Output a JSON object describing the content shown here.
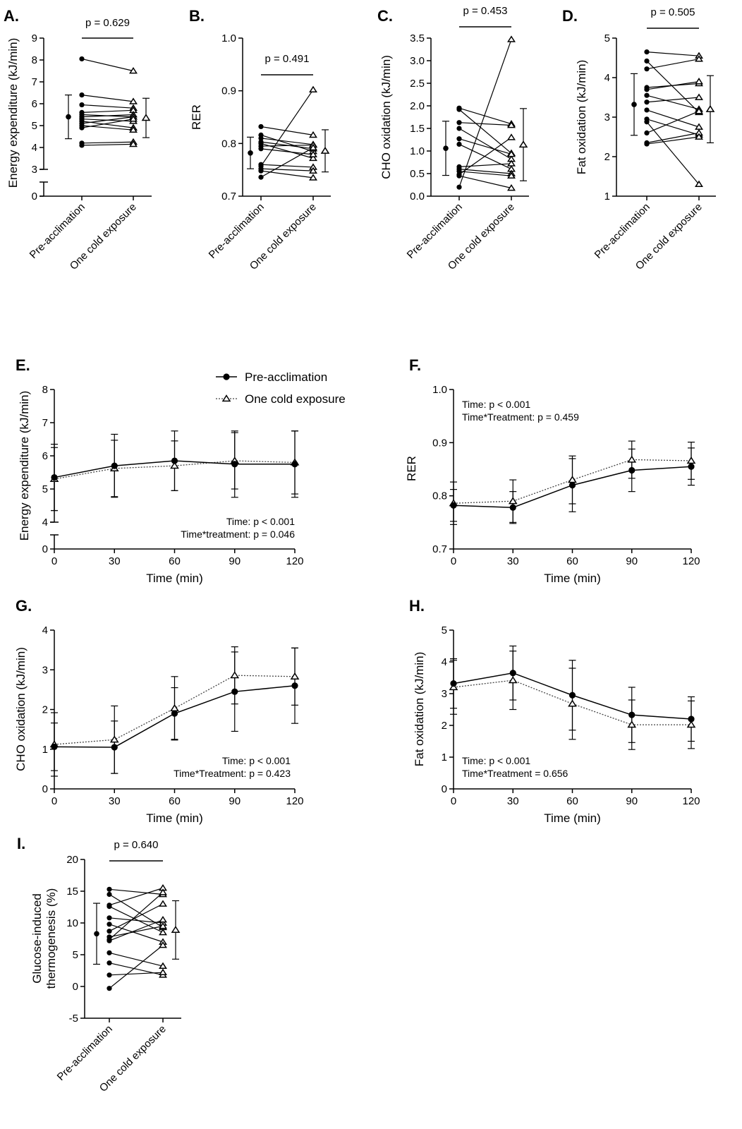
{
  "figure": {
    "legend": [
      {
        "name": "Pre-acclimation",
        "marker": "circle",
        "line": "solid"
      },
      {
        "name": "One cold exposure",
        "marker": "triangle",
        "line": "dotted"
      }
    ]
  },
  "chart_data": [
    {
      "id": "A",
      "panel_label": "A.",
      "type": "scatter",
      "ylabel": "Energy expenditure (kJ/min)",
      "yticks": [
        "0",
        "3",
        "4",
        "5",
        "6",
        "7",
        "8",
        "9"
      ],
      "ylim": [
        3,
        9
      ],
      "axis_break": true,
      "categories": [
        "Pre-acclimation",
        "One cold exposure"
      ],
      "p_value": "p = 0.629",
      "paired": [
        [
          8.05,
          7.5
        ],
        [
          6.4,
          6.1
        ],
        [
          5.95,
          5.8
        ],
        [
          5.6,
          5.7
        ],
        [
          5.5,
          5.4
        ],
        [
          5.4,
          5.5
        ],
        [
          5.3,
          5.2
        ],
        [
          5.2,
          4.9
        ],
        [
          5.1,
          5.4
        ],
        [
          5.0,
          4.8
        ],
        [
          4.9,
          5.3
        ],
        [
          4.2,
          4.25
        ],
        [
          4.1,
          4.15
        ]
      ],
      "summary": [
        {
          "mean": 5.4,
          "sd": 1.0
        },
        {
          "mean": 5.35,
          "sd": 0.9
        }
      ]
    },
    {
      "id": "B",
      "panel_label": "B.",
      "type": "scatter",
      "ylabel": "RER",
      "yticks": [
        "0.7",
        "0.8",
        "0.9",
        "1.0"
      ],
      "ylim": [
        0.7,
        1.0
      ],
      "axis_break": false,
      "categories": [
        "Pre-acclimation",
        "One cold exposure"
      ],
      "p_value": "p = 0.491",
      "paired": [
        [
          0.832,
          0.816
        ],
        [
          0.816,
          0.785
        ],
        [
          0.81,
          0.798
        ],
        [
          0.803,
          0.79
        ],
        [
          0.8,
          0.772
        ],
        [
          0.795,
          0.797
        ],
        [
          0.79,
          0.779
        ],
        [
          0.76,
          0.755
        ],
        [
          0.757,
          0.902
        ],
        [
          0.752,
          0.748
        ],
        [
          0.748,
          0.735
        ],
        [
          0.736,
          0.792
        ]
      ],
      "summary": [
        {
          "mean": 0.782,
          "sd": 0.03
        },
        {
          "mean": 0.786,
          "sd": 0.04
        }
      ]
    },
    {
      "id": "C",
      "panel_label": "C.",
      "type": "scatter",
      "ylabel": "CHO oxidation (kJ/min)",
      "yticks": [
        "0.0",
        "0.5",
        "1.0",
        "1.5",
        "2.0",
        "2.5",
        "3.0",
        "3.5"
      ],
      "ylim": [
        0,
        3.5
      ],
      "axis_break": false,
      "categories": [
        "Pre-acclimation",
        "One cold exposure"
      ],
      "p_value": "p = 0.453",
      "paired": [
        [
          1.95,
          1.6
        ],
        [
          1.92,
          0.95
        ],
        [
          1.63,
          1.57
        ],
        [
          1.5,
          0.82
        ],
        [
          1.27,
          0.93
        ],
        [
          1.15,
          0.6
        ],
        [
          0.65,
          0.72
        ],
        [
          0.6,
          0.5
        ],
        [
          0.55,
          0.45
        ],
        [
          0.48,
          1.3
        ],
        [
          0.45,
          0.18
        ],
        [
          0.2,
          3.47
        ]
      ],
      "summary": [
        {
          "mean": 1.06,
          "sd": 0.6
        },
        {
          "mean": 1.14,
          "sd": 0.8
        }
      ]
    },
    {
      "id": "D",
      "panel_label": "D.",
      "type": "scatter",
      "ylabel": "Fat oxidation (kJ/min)",
      "yticks": [
        "1",
        "2",
        "3",
        "4",
        "5"
      ],
      "ylim": [
        1,
        5
      ],
      "axis_break": false,
      "categories": [
        "Pre-acclimation",
        "One cold exposure"
      ],
      "p_value": "p = 0.505",
      "paired": [
        [
          4.65,
          4.55
        ],
        [
          4.42,
          3.12
        ],
        [
          4.22,
          4.47
        ],
        [
          3.75,
          3.85
        ],
        [
          3.7,
          3.9
        ],
        [
          3.55,
          3.2
        ],
        [
          3.38,
          3.5
        ],
        [
          3.18,
          2.75
        ],
        [
          2.95,
          2.55
        ],
        [
          2.88,
          1.3
        ],
        [
          2.6,
          3.15
        ],
        [
          2.35,
          2.6
        ],
        [
          2.32,
          2.5
        ]
      ],
      "summary": [
        {
          "mean": 3.32,
          "sd": 0.78
        },
        {
          "mean": 3.2,
          "sd": 0.85
        }
      ]
    },
    {
      "id": "E",
      "panel_label": "E.",
      "type": "line",
      "xlabel": "Time (min)",
      "ylabel": "Energy expenditure (kJ/min)",
      "x": [
        0,
        30,
        60,
        90,
        120
      ],
      "yticks": [
        "0",
        "4",
        "5",
        "6",
        "7",
        "8"
      ],
      "ylim": [
        4,
        8
      ],
      "axis_break": true,
      "series": [
        {
          "name": "Pre-acclimation",
          "values": [
            5.35,
            5.7,
            5.85,
            5.75,
            5.75
          ],
          "sd": [
            1.0,
            0.95,
            0.9,
            1.0,
            1.0
          ]
        },
        {
          "name": "One cold exposure",
          "values": [
            5.3,
            5.62,
            5.7,
            5.85,
            5.8
          ],
          "sd": [
            0.95,
            0.85,
            0.75,
            0.85,
            0.95
          ]
        }
      ],
      "annotations": [
        "Time: p < 0.001",
        "Time*treatment: p = 0.046"
      ],
      "annotation_position": "bottom-right"
    },
    {
      "id": "F",
      "panel_label": "F.",
      "type": "line",
      "xlabel": "Time (min)",
      "ylabel": "RER",
      "x": [
        0,
        30,
        60,
        90,
        120
      ],
      "yticks": [
        "0.7",
        "0.8",
        "0.9",
        "1.0"
      ],
      "ylim": [
        0.7,
        1.0
      ],
      "axis_break": false,
      "series": [
        {
          "name": "Pre-acclimation",
          "values": [
            0.782,
            0.778,
            0.82,
            0.848,
            0.855
          ],
          "sd": [
            0.03,
            0.03,
            0.05,
            0.04,
            0.035
          ]
        },
        {
          "name": "One cold exposure",
          "values": [
            0.786,
            0.79,
            0.83,
            0.868,
            0.866
          ],
          "sd": [
            0.04,
            0.04,
            0.045,
            0.035,
            0.035
          ]
        }
      ],
      "annotations": [
        "Time: p < 0.001",
        "Time*Treatment: p = 0.459"
      ],
      "annotation_position": "top-left"
    },
    {
      "id": "G",
      "panel_label": "G.",
      "type": "line",
      "xlabel": "Time (min)",
      "ylabel": "CHO oxidation (kJ/min)",
      "x": [
        0,
        30,
        60,
        90,
        120
      ],
      "yticks": [
        "0",
        "1",
        "2",
        "3",
        "4"
      ],
      "ylim": [
        0,
        4
      ],
      "axis_break": false,
      "series": [
        {
          "name": "Pre-acclimation",
          "values": [
            1.06,
            1.05,
            1.9,
            2.45,
            2.6
          ],
          "sd": [
            0.6,
            0.66,
            0.65,
            1.0,
            0.95
          ]
        },
        {
          "name": "One cold exposure",
          "values": [
            1.12,
            1.24,
            2.03,
            2.86,
            2.83
          ],
          "sd": [
            0.8,
            0.85,
            0.8,
            0.72,
            0.72
          ]
        }
      ],
      "annotations": [
        "Time: p < 0.001",
        "Time*Treatment: p = 0.423"
      ],
      "annotation_position": "bottom-right"
    },
    {
      "id": "H",
      "panel_label": "H.",
      "type": "line",
      "xlabel": "Time (min)",
      "ylabel": "Fat oxidation (kJ/min)",
      "x": [
        0,
        30,
        60,
        90,
        120
      ],
      "yticks": [
        "0",
        "1",
        "2",
        "3",
        "4",
        "5"
      ],
      "ylim": [
        0,
        5
      ],
      "axis_break": false,
      "series": [
        {
          "name": "Pre-acclimation",
          "values": [
            3.32,
            3.65,
            2.95,
            2.33,
            2.2
          ],
          "sd": [
            0.78,
            0.85,
            1.1,
            0.87,
            0.7
          ]
        },
        {
          "name": "One cold exposure",
          "values": [
            3.2,
            3.42,
            2.68,
            2.02,
            2.02
          ],
          "sd": [
            0.85,
            0.92,
            1.12,
            0.78,
            0.75
          ]
        }
      ],
      "annotations": [
        "Time: p < 0.001",
        "Time*Treatment = 0.656"
      ],
      "annotation_position": "bottom-left"
    },
    {
      "id": "I",
      "panel_label": "I.",
      "type": "scatter",
      "ylabel": "Glucose-induced thermogenesis (%)",
      "yticks": [
        "-5",
        "0",
        "5",
        "10",
        "15",
        "20"
      ],
      "ylim": [
        -5,
        20
      ],
      "axis_break": false,
      "categories": [
        "Pre-acclimation",
        "One cold exposure"
      ],
      "p_value": "p = 0.640",
      "paired": [
        [
          15.3,
          14.5
        ],
        [
          14.5,
          9.3
        ],
        [
          12.8,
          15.5
        ],
        [
          12.6,
          8.5
        ],
        [
          10.8,
          10.0
        ],
        [
          9.8,
          7.0
        ],
        [
          8.7,
          13.0
        ],
        [
          7.8,
          9.5
        ],
        [
          7.4,
          14.8
        ],
        [
          7.2,
          10.5
        ],
        [
          5.3,
          3.2
        ],
        [
          3.7,
          1.8
        ],
        [
          1.8,
          2.2
        ],
        [
          -0.3,
          6.5
        ]
      ],
      "summary": [
        {
          "mean": 8.3,
          "sd": 4.8
        },
        {
          "mean": 8.9,
          "sd": 4.6
        }
      ]
    }
  ]
}
